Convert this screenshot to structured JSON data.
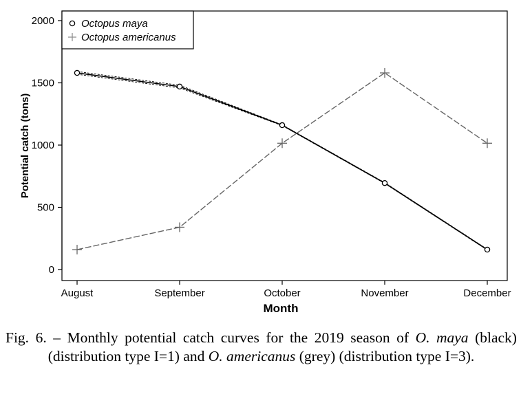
{
  "chart_data": {
    "type": "line",
    "categories": [
      "August",
      "September",
      "October",
      "November",
      "December"
    ],
    "xlabel": "Month",
    "ylabel": "Potential catch (tons)",
    "ylim": [
      0,
      2000
    ],
    "yticks": [
      0,
      500,
      1000,
      1500,
      2000
    ],
    "legend_position": "top-left",
    "grid": false,
    "series": [
      {
        "name": "Octopus maya",
        "marker": "circle",
        "color": "#000000",
        "values": [
          1580,
          1470,
          1160,
          695,
          160
        ]
      },
      {
        "name": "Octopus americanus",
        "marker": "plus",
        "color": "#666666",
        "values": [
          160,
          340,
          1015,
          1580,
          1015
        ]
      }
    ]
  },
  "caption": {
    "prefix": "Fig. 6. – Monthly potential catch curves for the 2019 season of ",
    "species1": "O. maya",
    "middle": " (black) (distribution type I=1) and ",
    "species2": "O. americanus",
    "suffix": " (grey) (distribution type I=3)."
  }
}
